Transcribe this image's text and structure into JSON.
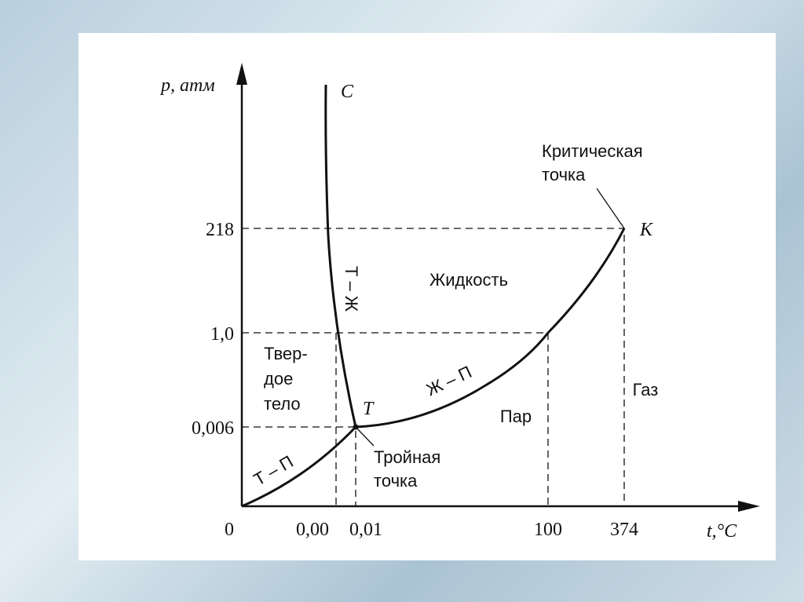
{
  "axes": {
    "y_label": "p, атм",
    "x_label": "t,°C",
    "origin": "0",
    "y_ticks": [
      "218",
      "1,0",
      "0,006"
    ],
    "x_ticks": [
      "0,00",
      "0,01",
      "100",
      "374"
    ]
  },
  "points": {
    "c": "C",
    "k": "K",
    "t": "T",
    "critical": [
      "Критическая",
      "точка"
    ],
    "triple": [
      "Тройная",
      "точка"
    ]
  },
  "curves": {
    "solid_liquid": "Т – Ж",
    "liquid_vapor": "Ж – П",
    "solid_vapor": "Т – П"
  },
  "regions": {
    "liquid": "Жидкость",
    "solid": [
      "Твер-",
      "дое",
      "тело"
    ],
    "vapor": "Пар",
    "gas": "Газ"
  }
}
